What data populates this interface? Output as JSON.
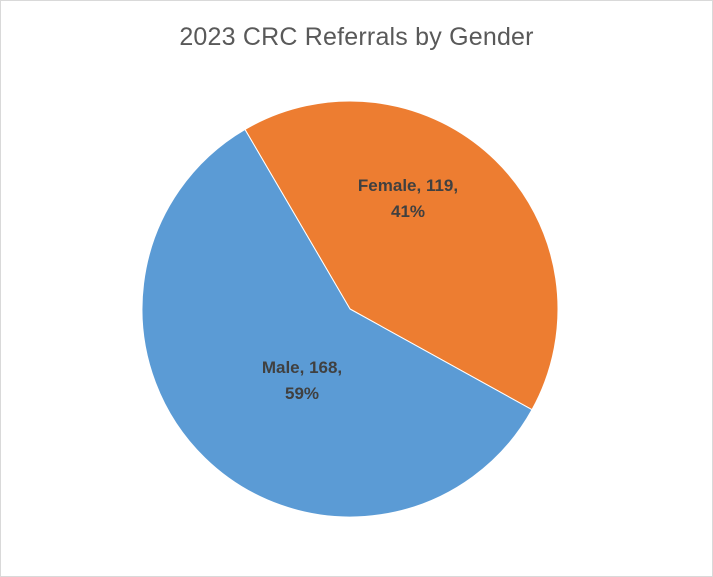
{
  "chart_data": {
    "type": "pie",
    "title": "2023 CRC Referrals by Gender",
    "slices": [
      {
        "name": "Female",
        "value": 119,
        "percent": "41%",
        "color": "#ED7D31",
        "label_line1": "Female, 119,",
        "label_line2": "41%"
      },
      {
        "name": "Male",
        "value": 168,
        "percent": "59%",
        "color": "#5B9BD5",
        "label_line1": "Male, 168,",
        "label_line2": "59%"
      }
    ],
    "legend": "none"
  }
}
